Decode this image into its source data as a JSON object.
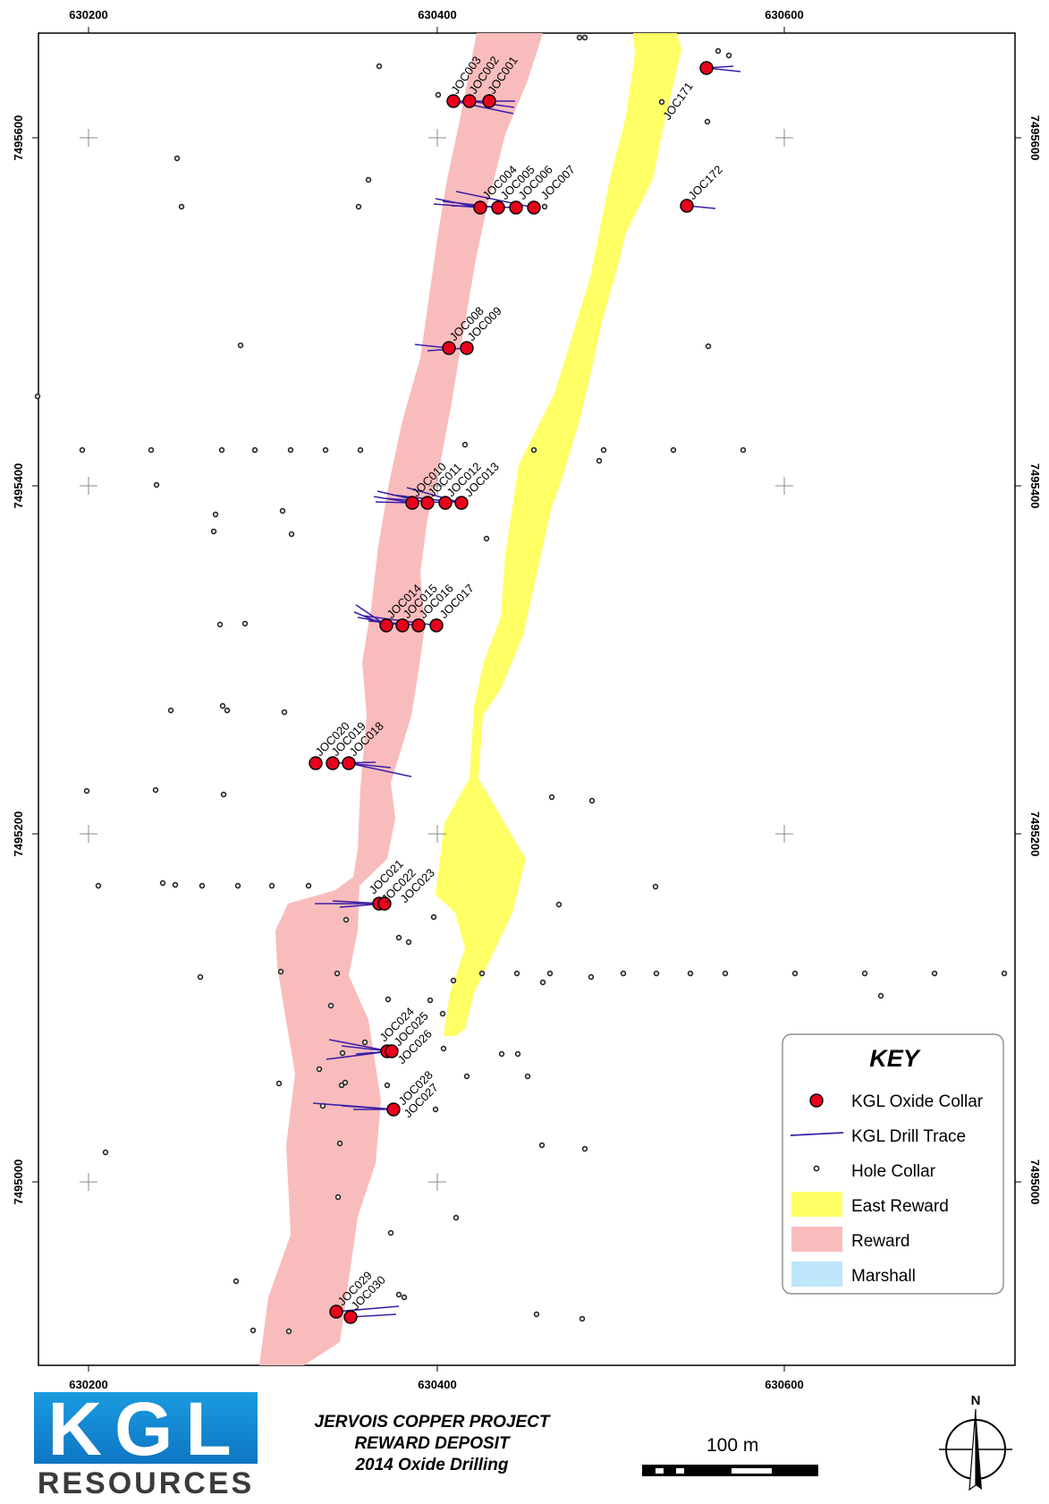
{
  "map": {
    "x_ticks": [
      "630200",
      "630400",
      "630600"
    ],
    "y_ticks": [
      "7495600",
      "7495400",
      "7495200",
      "7495000"
    ],
    "colors": {
      "east_reward": "#ffff66",
      "reward": "#f9bcbc",
      "marshall": "#bde6fb",
      "oxide_collar": "#e8001c",
      "drill_trace": "#3b1fa8",
      "hole_collar": "#222222",
      "grid_cross": "#888888"
    },
    "labels": {
      "JOC001": "JOC001",
      "JOC002": "JOC002",
      "JOC003": "JOC003",
      "JOC004": "JOC004",
      "JOC005": "JOC005",
      "JOC006": "JOC006",
      "JOC007": "JOC007",
      "JOC008": "JOC008",
      "JOC009": "JOC009",
      "JOC010": "JOC010",
      "JOC011": "JOC011",
      "JOC012": "JOC012",
      "JOC013": "JOC013",
      "JOC014": "JOC014",
      "JOC015": "JOC015",
      "JOC016": "JOC016",
      "JOC017": "JOC017",
      "JOC018": "JOC018",
      "JOC019": "JOC019",
      "JOC020": "JOC020",
      "JOC021": "JOC021",
      "JOC022": "JOC022",
      "JOC023": "JOC023",
      "JOC024": "JOC024",
      "JOC025": "JOC025",
      "JOC026": "JOC026",
      "JOC027": "JOC027",
      "JOC028": "JOC028",
      "JOC029": "JOC029",
      "JOC030": "JOC030",
      "JOC171": "JOC171",
      "JOC172": "JOC172"
    }
  },
  "legend": {
    "title": "KEY",
    "oxide_collar": "KGL Oxide Collar",
    "drill_trace": "KGL Drill Trace",
    "hole_collar": "Hole Collar",
    "east_reward": "East Reward",
    "reward": "Reward",
    "marshall": "Marshall"
  },
  "footer": {
    "title_line1": "JERVOIS COPPER PROJECT",
    "title_line2": "REWARD DEPOSIT",
    "title_line3": "2014 Oxide Drilling",
    "scale_label": "100 m",
    "north_label": "N",
    "logo_main": "KGL",
    "logo_sub": "RESOURCES"
  }
}
